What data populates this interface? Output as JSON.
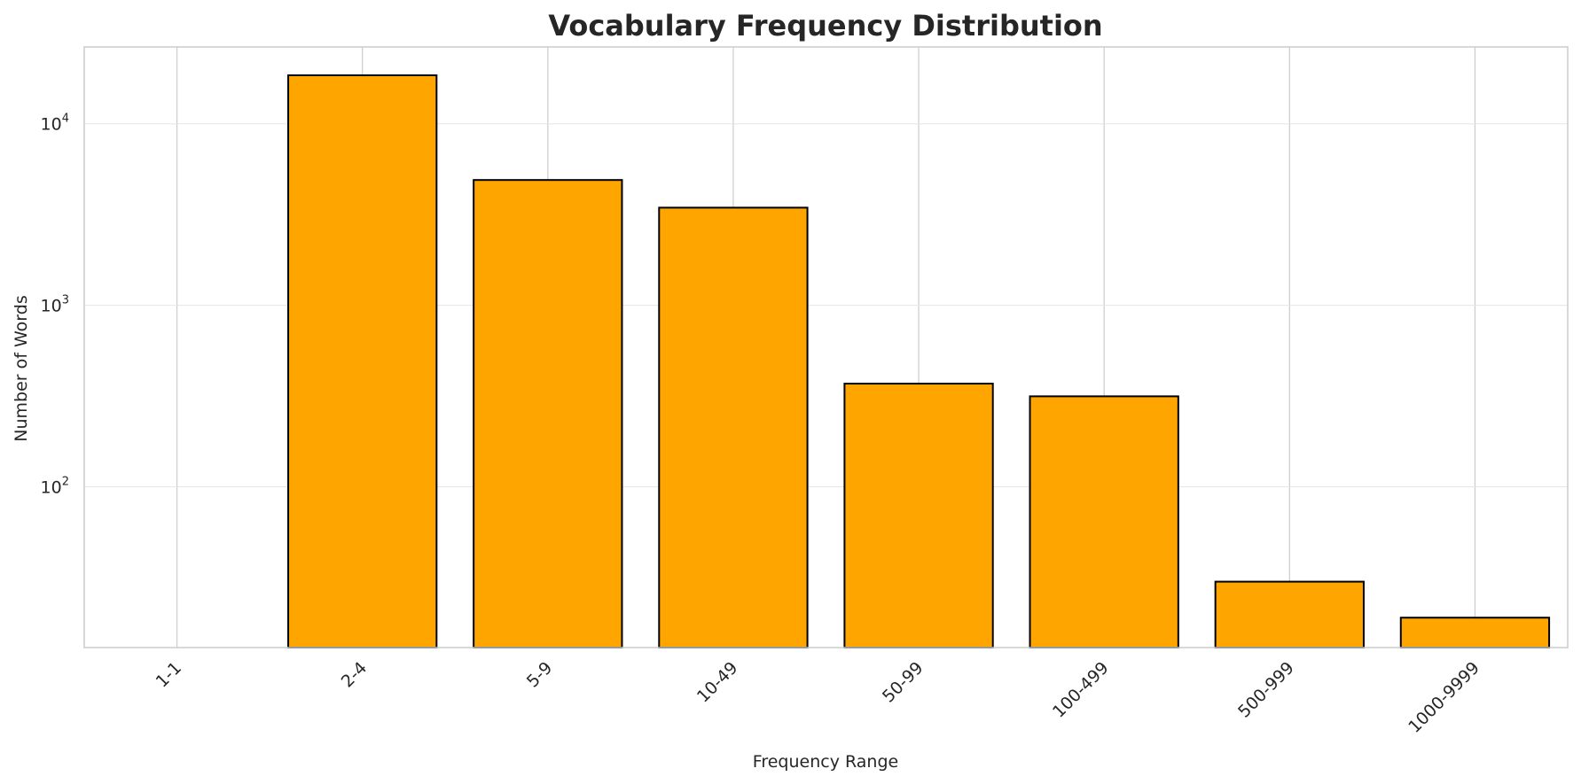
{
  "chart_data": {
    "type": "bar",
    "title": "Vocabulary Frequency Distribution",
    "xlabel": "Frequency Range",
    "ylabel": "Number of Words",
    "categories": [
      "1-1",
      "2-4",
      "5-9",
      "10-49",
      "50-99",
      "100-499",
      "500-999",
      "1000-9999"
    ],
    "values": [
      0,
      18500,
      4900,
      3450,
      370,
      315,
      30,
      19
    ],
    "yscale": "log",
    "ylim": [
      13,
      26500
    ],
    "yticks": [
      {
        "base": "10",
        "exp": "2",
        "value": 100
      },
      {
        "base": "10",
        "exp": "3",
        "value": 1000
      },
      {
        "base": "10",
        "exp": "4",
        "value": 10000
      }
    ],
    "grid": true,
    "bar_color": "#FFA500",
    "bar_edge_color": "#000000",
    "grid_color": "#e6e6e6",
    "xtick_rotation": "45°"
  }
}
